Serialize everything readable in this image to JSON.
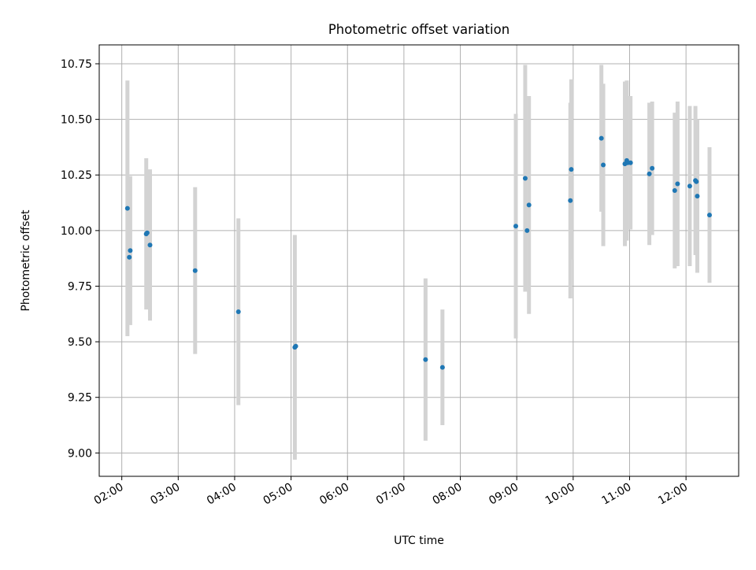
{
  "chart_data": {
    "type": "scatter",
    "title": "Photometric offset variation",
    "xlabel": "UTC time",
    "ylabel": "Photometric offset",
    "x_tick_labels": [
      "02:00",
      "03:00",
      "04:00",
      "05:00",
      "06:00",
      "07:00",
      "08:00",
      "09:00",
      "10:00",
      "11:00",
      "12:00"
    ],
    "y_tick_labels": [
      "9.00",
      "9.25",
      "9.50",
      "9.75",
      "10.00",
      "10.25",
      "10.50",
      "10.75"
    ],
    "x_tick_values": [
      "02:00",
      "03:00",
      "04:00",
      "05:00",
      "06:00",
      "07:00",
      "08:00",
      "09:00",
      "10:00",
      "11:00",
      "12:00"
    ],
    "y_tick_values": [
      9.0,
      9.25,
      9.5,
      9.75,
      10.0,
      10.25,
      10.5,
      10.75
    ],
    "xlim": [
      "01:36",
      "12:56"
    ],
    "ylim": [
      8.895,
      10.835
    ],
    "grid": true,
    "colors": {
      "marker": "#1f77b4",
      "errorbar": "#d3d3d3",
      "grid": "#b0b0b0"
    },
    "series": [
      {
        "points": [
          {
            "x": "02:06",
            "y": 10.1,
            "err": 0.575
          },
          {
            "x": "02:09",
            "y": 9.91,
            "err": 0.335
          },
          {
            "x": "02:08",
            "y": 9.88,
            "err": 0.0
          },
          {
            "x": "02:26",
            "y": 9.985,
            "err": 0.34
          },
          {
            "x": "02:27",
            "y": 9.99,
            "err": 0.0
          },
          {
            "x": "02:30",
            "y": 9.935,
            "err": 0.34
          },
          {
            "x": "03:18",
            "y": 9.82,
            "err": 0.375
          },
          {
            "x": "04:04",
            "y": 9.635,
            "err": 0.42
          },
          {
            "x": "05:04",
            "y": 9.475,
            "err": 0.505
          },
          {
            "x": "05:05",
            "y": 9.48,
            "err": 0.0
          },
          {
            "x": "07:23",
            "y": 9.42,
            "err": 0.365
          },
          {
            "x": "07:41",
            "y": 9.385,
            "err": 0.26
          },
          {
            "x": "08:59",
            "y": 10.02,
            "err": 0.505
          },
          {
            "x": "09:09",
            "y": 10.235,
            "err": 0.51
          },
          {
            "x": "09:11",
            "y": 10.0,
            "err": 0.0
          },
          {
            "x": "09:13",
            "y": 10.115,
            "err": 0.49
          },
          {
            "x": "09:58",
            "y": 10.275,
            "err": 0.405
          },
          {
            "x": "09:57",
            "y": 10.135,
            "err": 0.44
          },
          {
            "x": "10:30",
            "y": 10.415,
            "err": 0.33
          },
          {
            "x": "10:32",
            "y": 10.295,
            "err": 0.365
          },
          {
            "x": "10:55",
            "y": 10.3,
            "err": 0.37
          },
          {
            "x": "10:57",
            "y": 10.315,
            "err": 0.36
          },
          {
            "x": "10:58",
            "y": 10.305,
            "err": 0.0
          },
          {
            "x": "11:01",
            "y": 10.305,
            "err": 0.3
          },
          {
            "x": "11:21",
            "y": 10.255,
            "err": 0.32
          },
          {
            "x": "11:24",
            "y": 10.28,
            "err": 0.3
          },
          {
            "x": "11:48",
            "y": 10.18,
            "err": 0.35
          },
          {
            "x": "11:51",
            "y": 10.21,
            "err": 0.37
          },
          {
            "x": "12:04",
            "y": 10.2,
            "err": 0.36
          },
          {
            "x": "12:10",
            "y": 10.225,
            "err": 0.335
          },
          {
            "x": "12:11",
            "y": 10.22,
            "err": 0.0
          },
          {
            "x": "12:12",
            "y": 10.155,
            "err": 0.345
          },
          {
            "x": "12:25",
            "y": 10.07,
            "err": 0.305
          }
        ]
      }
    ]
  }
}
